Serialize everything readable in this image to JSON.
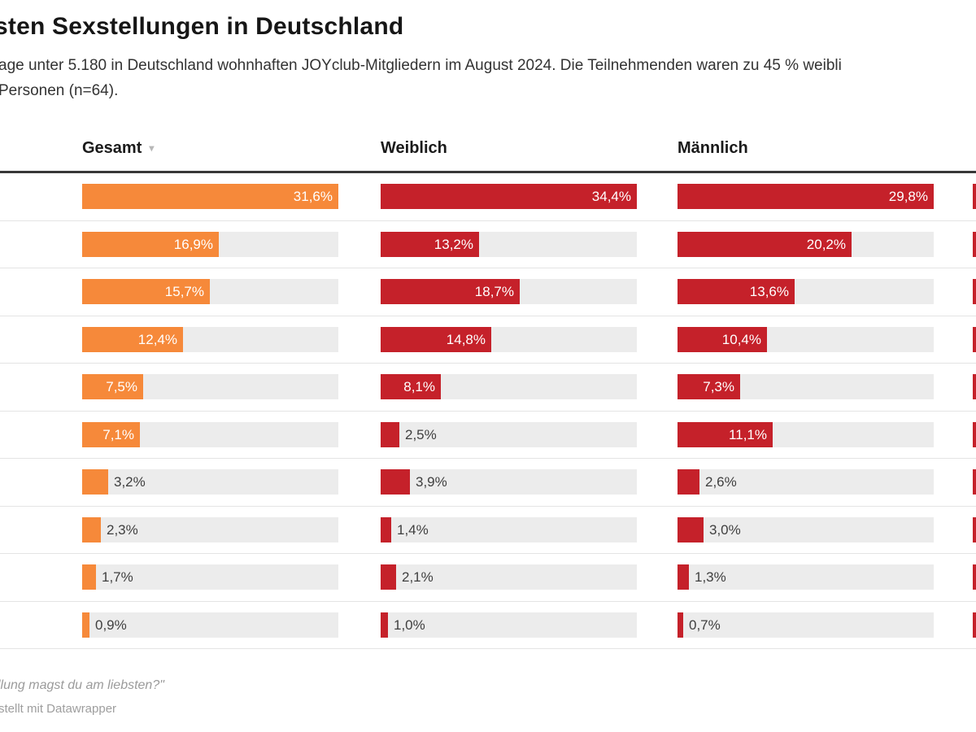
{
  "header": {
    "title": "sten Sexstellungen in Deutschland",
    "subtitle_line1": "age unter 5.180 in Deutschland wohnhaften JOYclub-Mitgliedern im August 2024. Die Teilnehmenden waren zu 45 % weibli",
    "subtitle_line2": "Personen (n=64)."
  },
  "table": {
    "columns": [
      {
        "label": "Gesamt",
        "color": "#F6893A",
        "sorted": true
      },
      {
        "label": "Weiblich",
        "color": "#C5212A",
        "sorted": false
      },
      {
        "label": "Männlich",
        "color": "#C5212A",
        "sorted": false
      }
    ],
    "rows": [
      {
        "values": [
          31.6,
          34.4,
          29.8
        ],
        "labels": [
          "31,6%",
          "34,4%",
          "29,8%"
        ]
      },
      {
        "values": [
          16.9,
          13.2,
          20.2
        ],
        "labels": [
          "16,9%",
          "13,2%",
          "20,2%"
        ]
      },
      {
        "values": [
          15.7,
          18.7,
          13.6
        ],
        "labels": [
          "15,7%",
          "18,7%",
          "13,6%"
        ]
      },
      {
        "values": [
          12.4,
          14.8,
          10.4
        ],
        "labels": [
          "12,4%",
          "14,8%",
          "10,4%"
        ]
      },
      {
        "values": [
          7.5,
          8.1,
          7.3
        ],
        "labels": [
          "7,5%",
          "8,1%",
          "7,3%"
        ]
      },
      {
        "values": [
          7.1,
          2.5,
          11.1
        ],
        "labels": [
          "7,1%",
          "2,5%",
          "11,1%"
        ]
      },
      {
        "values": [
          3.2,
          3.9,
          2.6
        ],
        "labels": [
          "3,2%",
          "3,9%",
          "2,6%"
        ]
      },
      {
        "values": [
          2.3,
          1.4,
          3.0
        ],
        "labels": [
          "2,3%",
          "1,4%",
          "3,0%"
        ]
      },
      {
        "values": [
          1.7,
          2.1,
          1.3
        ],
        "labels": [
          "1,7%",
          "2,1%",
          "1,3%"
        ]
      },
      {
        "values": [
          0.9,
          1.0,
          0.7
        ],
        "labels": [
          "0,9%",
          "1,0%",
          "0,7%"
        ]
      }
    ],
    "cropped_fourth_column_color": "#C5212A",
    "sort_icon": "▾"
  },
  "colors": {
    "accent_orange": "#F6893A",
    "accent_red": "#C5212A",
    "track_gray": "#ECECEC"
  },
  "footer": {
    "question": "llung magst du am liebsten?\"",
    "attribution": "stellt mit Datawrapper"
  },
  "chart_data": {
    "type": "bar",
    "orientation": "horizontal",
    "title": "sten Sexstellungen in Deutschland",
    "subtitle": "age unter 5.180 in Deutschland wohnhaften JOYclub-Mitgliedern im August 2024. Die Teilnehmenden waren zu 45 % weibli / Personen (n=64).",
    "row_labels": "cropped out of left edge of frame",
    "series": [
      {
        "name": "Gesamt",
        "color": "#F6893A",
        "values": [
          31.6,
          16.9,
          15.7,
          12.4,
          7.5,
          7.1,
          3.2,
          2.3,
          1.7,
          0.9
        ]
      },
      {
        "name": "Weiblich",
        "color": "#C5212A",
        "values": [
          34.4,
          13.2,
          18.7,
          14.8,
          8.1,
          2.5,
          3.9,
          1.4,
          2.1,
          1.0
        ]
      },
      {
        "name": "Männlich",
        "color": "#C5212A",
        "values": [
          29.8,
          20.2,
          13.6,
          10.4,
          7.3,
          11.1,
          2.6,
          3.0,
          1.3,
          0.7
        ]
      }
    ],
    "value_format": "percent with comma decimal separator",
    "scaling": "each column's bars scaled to that column's max value",
    "legend_position": "column headers",
    "grid": false,
    "footer_question": "llung magst du am liebsten?\"",
    "attribution": "stellt mit Datawrapper"
  }
}
